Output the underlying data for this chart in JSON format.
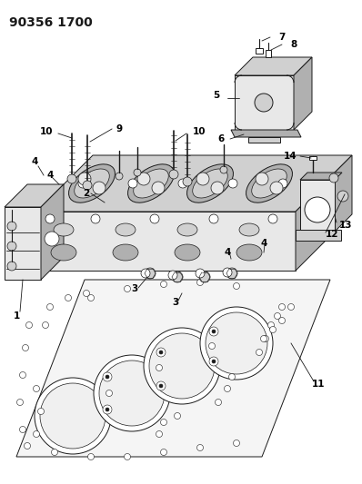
{
  "title": "90356 1700",
  "bg_color": "#ffffff",
  "line_color": "#1a1a1a",
  "gray_light": "#e8e8e8",
  "gray_mid": "#d0d0d0",
  "gray_dark": "#b0b0b0",
  "title_fontsize": 10,
  "label_fontsize": 7.5,
  "fig_width": 3.98,
  "fig_height": 5.33,
  "dpi": 100
}
